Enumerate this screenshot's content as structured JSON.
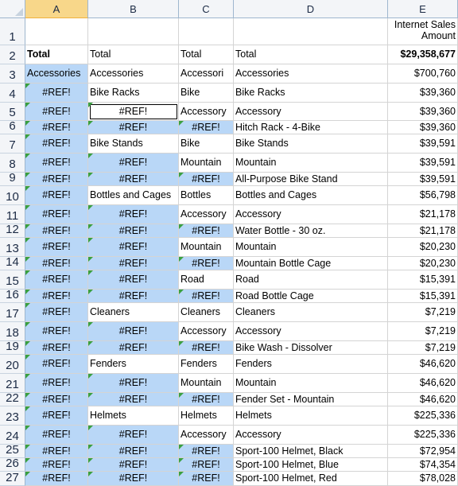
{
  "columns": [
    "A",
    "B",
    "C",
    "D",
    "E"
  ],
  "selected_column": "A",
  "colors": {
    "header_bg": "#f3f5f8",
    "selected_header": "#f8d78a",
    "selection_fill": "#b9d7f7",
    "error_marker": "#3aa040"
  },
  "rows": [
    {
      "n": "1",
      "a": "",
      "b": "",
      "c": "",
      "d": "",
      "e": "Internet Sales Amount"
    },
    {
      "n": "2",
      "a": "Total",
      "b": "Total",
      "c": "Total",
      "d": "Total",
      "e": "$29,358,677"
    },
    {
      "n": "3",
      "a": "Accessories",
      "b": "Accessories",
      "c": "Accessori",
      "d": "Accessories",
      "e": "$700,760"
    },
    {
      "n": "4",
      "a": "#REF!",
      "b": "Bike Racks",
      "c": "Bike",
      "d": "Bike Racks",
      "e": "$39,360"
    },
    {
      "n": "5",
      "a": "#REF!",
      "b": "#REF!",
      "c": "Accessory",
      "d": "Accessory",
      "e": "$39,360"
    },
    {
      "n": "6",
      "a": "#REF!",
      "b": "#REF!",
      "c": "#REF!",
      "d": "Hitch Rack - 4-Bike",
      "e": "$39,360"
    },
    {
      "n": "7",
      "a": "#REF!",
      "b": "Bike Stands",
      "c": "Bike",
      "d": "Bike Stands",
      "e": "$39,591"
    },
    {
      "n": "8",
      "a": "#REF!",
      "b": "#REF!",
      "c": "Mountain",
      "d": "Mountain",
      "e": "$39,591"
    },
    {
      "n": "9",
      "a": "#REF!",
      "b": "#REF!",
      "c": "#REF!",
      "d": "All-Purpose Bike Stand",
      "e": "$39,591"
    },
    {
      "n": "10",
      "a": "#REF!",
      "b": "Bottles and Cages",
      "c": "Bottles",
      "d": "Bottles and Cages",
      "e": "$56,798"
    },
    {
      "n": "11",
      "a": "#REF!",
      "b": "#REF!",
      "c": "Accessory",
      "d": "Accessory",
      "e": "$21,178"
    },
    {
      "n": "12",
      "a": "#REF!",
      "b": "#REF!",
      "c": "#REF!",
      "d": "Water Bottle - 30 oz.",
      "e": "$21,178"
    },
    {
      "n": "13",
      "a": "#REF!",
      "b": "#REF!",
      "c": "Mountain",
      "d": "Mountain",
      "e": "$20,230"
    },
    {
      "n": "14",
      "a": "#REF!",
      "b": "#REF!",
      "c": "#REF!",
      "d": "Mountain Bottle Cage",
      "e": "$20,230"
    },
    {
      "n": "15",
      "a": "#REF!",
      "b": "#REF!",
      "c": "Road",
      "d": "Road",
      "e": "$15,391"
    },
    {
      "n": "16",
      "a": "#REF!",
      "b": "#REF!",
      "c": "#REF!",
      "d": "Road Bottle Cage",
      "e": "$15,391"
    },
    {
      "n": "17",
      "a": "#REF!",
      "b": "Cleaners",
      "c": "Cleaners",
      "d": "Cleaners",
      "e": "$7,219"
    },
    {
      "n": "18",
      "a": "#REF!",
      "b": "#REF!",
      "c": "Accessory",
      "d": "Accessory",
      "e": "$7,219"
    },
    {
      "n": "19",
      "a": "#REF!",
      "b": "#REF!",
      "c": "#REF!",
      "d": "Bike Wash - Dissolver",
      "e": "$7,219"
    },
    {
      "n": "20",
      "a": "#REF!",
      "b": "Fenders",
      "c": "Fenders",
      "d": "Fenders",
      "e": "$46,620"
    },
    {
      "n": "21",
      "a": "#REF!",
      "b": "#REF!",
      "c": "Mountain",
      "d": "Mountain",
      "e": "$46,620"
    },
    {
      "n": "22",
      "a": "#REF!",
      "b": "#REF!",
      "c": "#REF!",
      "d": "Fender Set - Mountain",
      "e": "$46,620"
    },
    {
      "n": "23",
      "a": "#REF!",
      "b": "Helmets",
      "c": "Helmets",
      "d": "Helmets",
      "e": "$225,336"
    },
    {
      "n": "24",
      "a": "#REF!",
      "b": "#REF!",
      "c": "Accessory",
      "d": "Accessory",
      "e": "$225,336"
    },
    {
      "n": "25",
      "a": "#REF!",
      "b": "#REF!",
      "c": "#REF!",
      "d": "Sport-100 Helmet, Black",
      "e": "$72,954"
    },
    {
      "n": "26",
      "a": "#REF!",
      "b": "#REF!",
      "c": "#REF!",
      "d": "Sport-100 Helmet, Blue",
      "e": "$74,354"
    },
    {
      "n": "27",
      "a": "#REF!",
      "b": "#REF!",
      "c": "#REF!",
      "d": "Sport-100 Helmet, Red",
      "e": "$78,028"
    }
  ]
}
